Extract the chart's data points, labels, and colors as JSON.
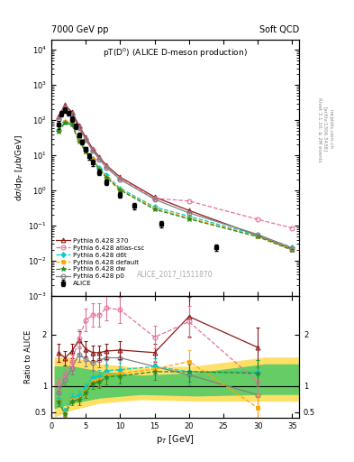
{
  "title_left": "7000 GeV pp",
  "title_right": "Soft QCD",
  "plot_title": "pT(D$^0$) (ALICE D-meson production)",
  "xlabel": "p$_T$ [GeV]",
  "ylabel_top": "d$\\sigma$/dp$_T$ [$\\mu$b/GeV]",
  "ylabel_bottom": "Ratio to ALICE",
  "watermark": "ALICE_2017_I1511870",
  "alice_x": [
    1.0,
    1.5,
    2.0,
    2.5,
    3.0,
    3.5,
    4.0,
    4.5,
    5.0,
    5.5,
    6.0,
    7.0,
    8.0,
    10.0,
    12.0,
    16.0,
    24.0
  ],
  "alice_y": [
    75,
    155,
    195,
    158,
    108,
    68,
    38,
    24,
    15,
    9.5,
    6.2,
    3.3,
    1.7,
    0.75,
    0.36,
    0.11,
    0.024
  ],
  "alice_yerr_lo": [
    18,
    28,
    33,
    26,
    18,
    11,
    6,
    3.5,
    2.5,
    1.8,
    1.1,
    0.6,
    0.3,
    0.13,
    0.07,
    0.022,
    0.005
  ],
  "alice_yerr_hi": [
    18,
    28,
    33,
    26,
    18,
    11,
    6,
    3.5,
    2.5,
    1.8,
    1.1,
    0.6,
    0.3,
    0.13,
    0.07,
    0.022,
    0.005
  ],
  "pythia370_x": [
    1.0,
    2.0,
    3.0,
    4.0,
    5.0,
    6.0,
    7.0,
    8.0,
    10.0,
    15.0,
    20.0,
    30.0,
    35.0
  ],
  "pythia370_y": [
    125,
    270,
    168,
    72,
    32,
    15.5,
    8.8,
    5.2,
    2.4,
    0.65,
    0.27,
    0.052,
    0.021
  ],
  "pythia_atlascsc_x": [
    1.0,
    2.0,
    3.0,
    4.0,
    5.0,
    6.0,
    7.0,
    8.0,
    10.0,
    15.0,
    20.0,
    30.0,
    35.0
  ],
  "pythia_atlascsc_y": [
    110,
    225,
    148,
    64,
    29,
    14,
    8.0,
    4.8,
    2.2,
    0.6,
    0.5,
    0.15,
    0.085
  ],
  "pythia_d6t_x": [
    1.0,
    2.0,
    3.0,
    4.0,
    5.0,
    6.0,
    7.0,
    8.0,
    10.0,
    15.0,
    20.0,
    30.0,
    35.0
  ],
  "pythia_d6t_y": [
    52,
    92,
    82,
    29,
    14,
    7.8,
    4.4,
    2.7,
    1.15,
    0.34,
    0.185,
    0.053,
    0.024
  ],
  "pythia_default_x": [
    1.0,
    2.0,
    3.0,
    4.0,
    5.0,
    6.0,
    7.0,
    8.0,
    10.0,
    15.0,
    20.0,
    30.0,
    35.0
  ],
  "pythia_default_y": [
    50,
    88,
    78,
    27,
    13,
    7.3,
    4.1,
    2.5,
    1.08,
    0.31,
    0.165,
    0.05,
    0.021
  ],
  "pythia_dw_x": [
    1.0,
    2.0,
    3.0,
    4.0,
    5.0,
    6.0,
    7.0,
    8.0,
    10.0,
    15.0,
    20.0,
    30.0,
    35.0
  ],
  "pythia_dw_y": [
    48,
    83,
    73,
    25,
    12.5,
    6.8,
    3.9,
    2.35,
    1.02,
    0.29,
    0.155,
    0.048,
    0.02
  ],
  "pythia_p0_x": [
    1.0,
    2.0,
    3.0,
    4.0,
    5.0,
    6.0,
    7.0,
    8.0,
    10.0,
    15.0,
    20.0,
    30.0,
    35.0
  ],
  "pythia_p0_y": [
    105,
    212,
    140,
    61,
    28,
    13.5,
    7.6,
    4.5,
    2.05,
    0.56,
    0.23,
    0.056,
    0.023
  ],
  "ratio_370_x": [
    1.0,
    2.0,
    3.0,
    4.0,
    5.0,
    6.0,
    7.0,
    8.0,
    10.0,
    15.0,
    20.0,
    30.0
  ],
  "ratio_370_y": [
    1.65,
    1.55,
    1.68,
    1.9,
    1.72,
    1.65,
    1.65,
    1.68,
    1.7,
    1.65,
    2.35,
    1.75
  ],
  "ratio_370_yerr": [
    0.18,
    0.14,
    0.14,
    0.17,
    0.15,
    0.14,
    0.14,
    0.15,
    0.17,
    0.17,
    0.38,
    0.38
  ],
  "ratio_atlascsc_x": [
    1.0,
    2.0,
    3.0,
    4.0,
    5.0,
    6.0,
    7.0,
    8.0,
    10.0,
    15.0,
    20.0,
    30.0
  ],
  "ratio_atlascsc_y": [
    1.05,
    1.22,
    1.48,
    1.92,
    2.28,
    2.38,
    2.38,
    2.52,
    2.48,
    1.95,
    2.25,
    1.08
  ],
  "ratio_atlascsc_yerr": [
    0.12,
    0.12,
    0.14,
    0.18,
    0.22,
    0.22,
    0.22,
    0.25,
    0.25,
    0.22,
    0.3,
    0.28
  ],
  "ratio_d6t_x": [
    1.0,
    2.0,
    3.0,
    4.0,
    5.0,
    6.0,
    7.0,
    8.0,
    10.0,
    15.0,
    20.0,
    30.0
  ],
  "ratio_d6t_y": [
    0.75,
    0.52,
    0.78,
    0.82,
    0.96,
    1.18,
    1.2,
    1.3,
    1.32,
    1.38,
    1.28,
    1.28
  ],
  "ratio_d6t_yerr": [
    0.08,
    0.06,
    0.08,
    0.09,
    0.1,
    0.12,
    0.12,
    0.14,
    0.14,
    0.16,
    0.2,
    0.22
  ],
  "ratio_default_x": [
    1.0,
    2.0,
    3.0,
    4.0,
    5.0,
    6.0,
    7.0,
    8.0,
    10.0,
    15.0,
    20.0,
    30.0
  ],
  "ratio_default_y": [
    0.72,
    0.48,
    0.74,
    0.76,
    0.9,
    1.1,
    1.12,
    1.22,
    1.25,
    1.33,
    1.48,
    0.58
  ],
  "ratio_default_yerr": [
    0.08,
    0.06,
    0.08,
    0.09,
    0.1,
    0.12,
    0.12,
    0.14,
    0.14,
    0.16,
    0.22,
    0.28
  ],
  "ratio_dw_x": [
    1.0,
    2.0,
    3.0,
    4.0,
    5.0,
    6.0,
    7.0,
    8.0,
    10.0,
    15.0,
    20.0,
    30.0
  ],
  "ratio_dw_y": [
    0.7,
    0.46,
    0.71,
    0.73,
    0.87,
    1.06,
    1.08,
    1.18,
    1.2,
    1.28,
    1.28,
    1.25
  ],
  "ratio_dw_yerr": [
    0.08,
    0.06,
    0.08,
    0.09,
    0.1,
    0.12,
    0.12,
    0.14,
    0.14,
    0.16,
    0.2,
    0.25
  ],
  "ratio_p0_x": [
    1.0,
    2.0,
    3.0,
    4.0,
    5.0,
    6.0,
    7.0,
    8.0,
    10.0,
    15.0,
    20.0,
    30.0
  ],
  "ratio_p0_y": [
    0.88,
    1.12,
    1.35,
    1.62,
    1.52,
    1.45,
    1.5,
    1.55,
    1.55,
    1.38,
    1.22,
    0.83
  ],
  "ratio_p0_yerr": [
    0.1,
    0.1,
    0.12,
    0.15,
    0.14,
    0.14,
    0.14,
    0.15,
    0.16,
    0.16,
    0.2,
    0.22
  ],
  "yellow_band_x": [
    0.5,
    3.0,
    7.0,
    13.0,
    21.0,
    31.0,
    36.0
  ],
  "yellow_band_low": [
    0.42,
    0.55,
    0.68,
    0.75,
    0.72,
    0.72,
    0.72
  ],
  "yellow_band_high": [
    1.55,
    1.55,
    1.42,
    1.35,
    1.38,
    1.55,
    1.55
  ],
  "green_band_x": [
    0.5,
    3.0,
    7.0,
    13.0,
    21.0,
    31.0,
    36.0
  ],
  "green_band_low": [
    0.58,
    0.68,
    0.78,
    0.85,
    0.82,
    0.85,
    0.85
  ],
  "green_band_high": [
    1.38,
    1.38,
    1.28,
    1.2,
    1.25,
    1.42,
    1.42
  ],
  "color_alice": "#000000",
  "color_370": "#8b1a1a",
  "color_atlascsc": "#e8729a",
  "color_d6t": "#00cdcd",
  "color_default": "#ffa500",
  "color_dw": "#228b22",
  "color_p0": "#808080",
  "color_yellow": "#ffe066",
  "color_green": "#66cc66"
}
